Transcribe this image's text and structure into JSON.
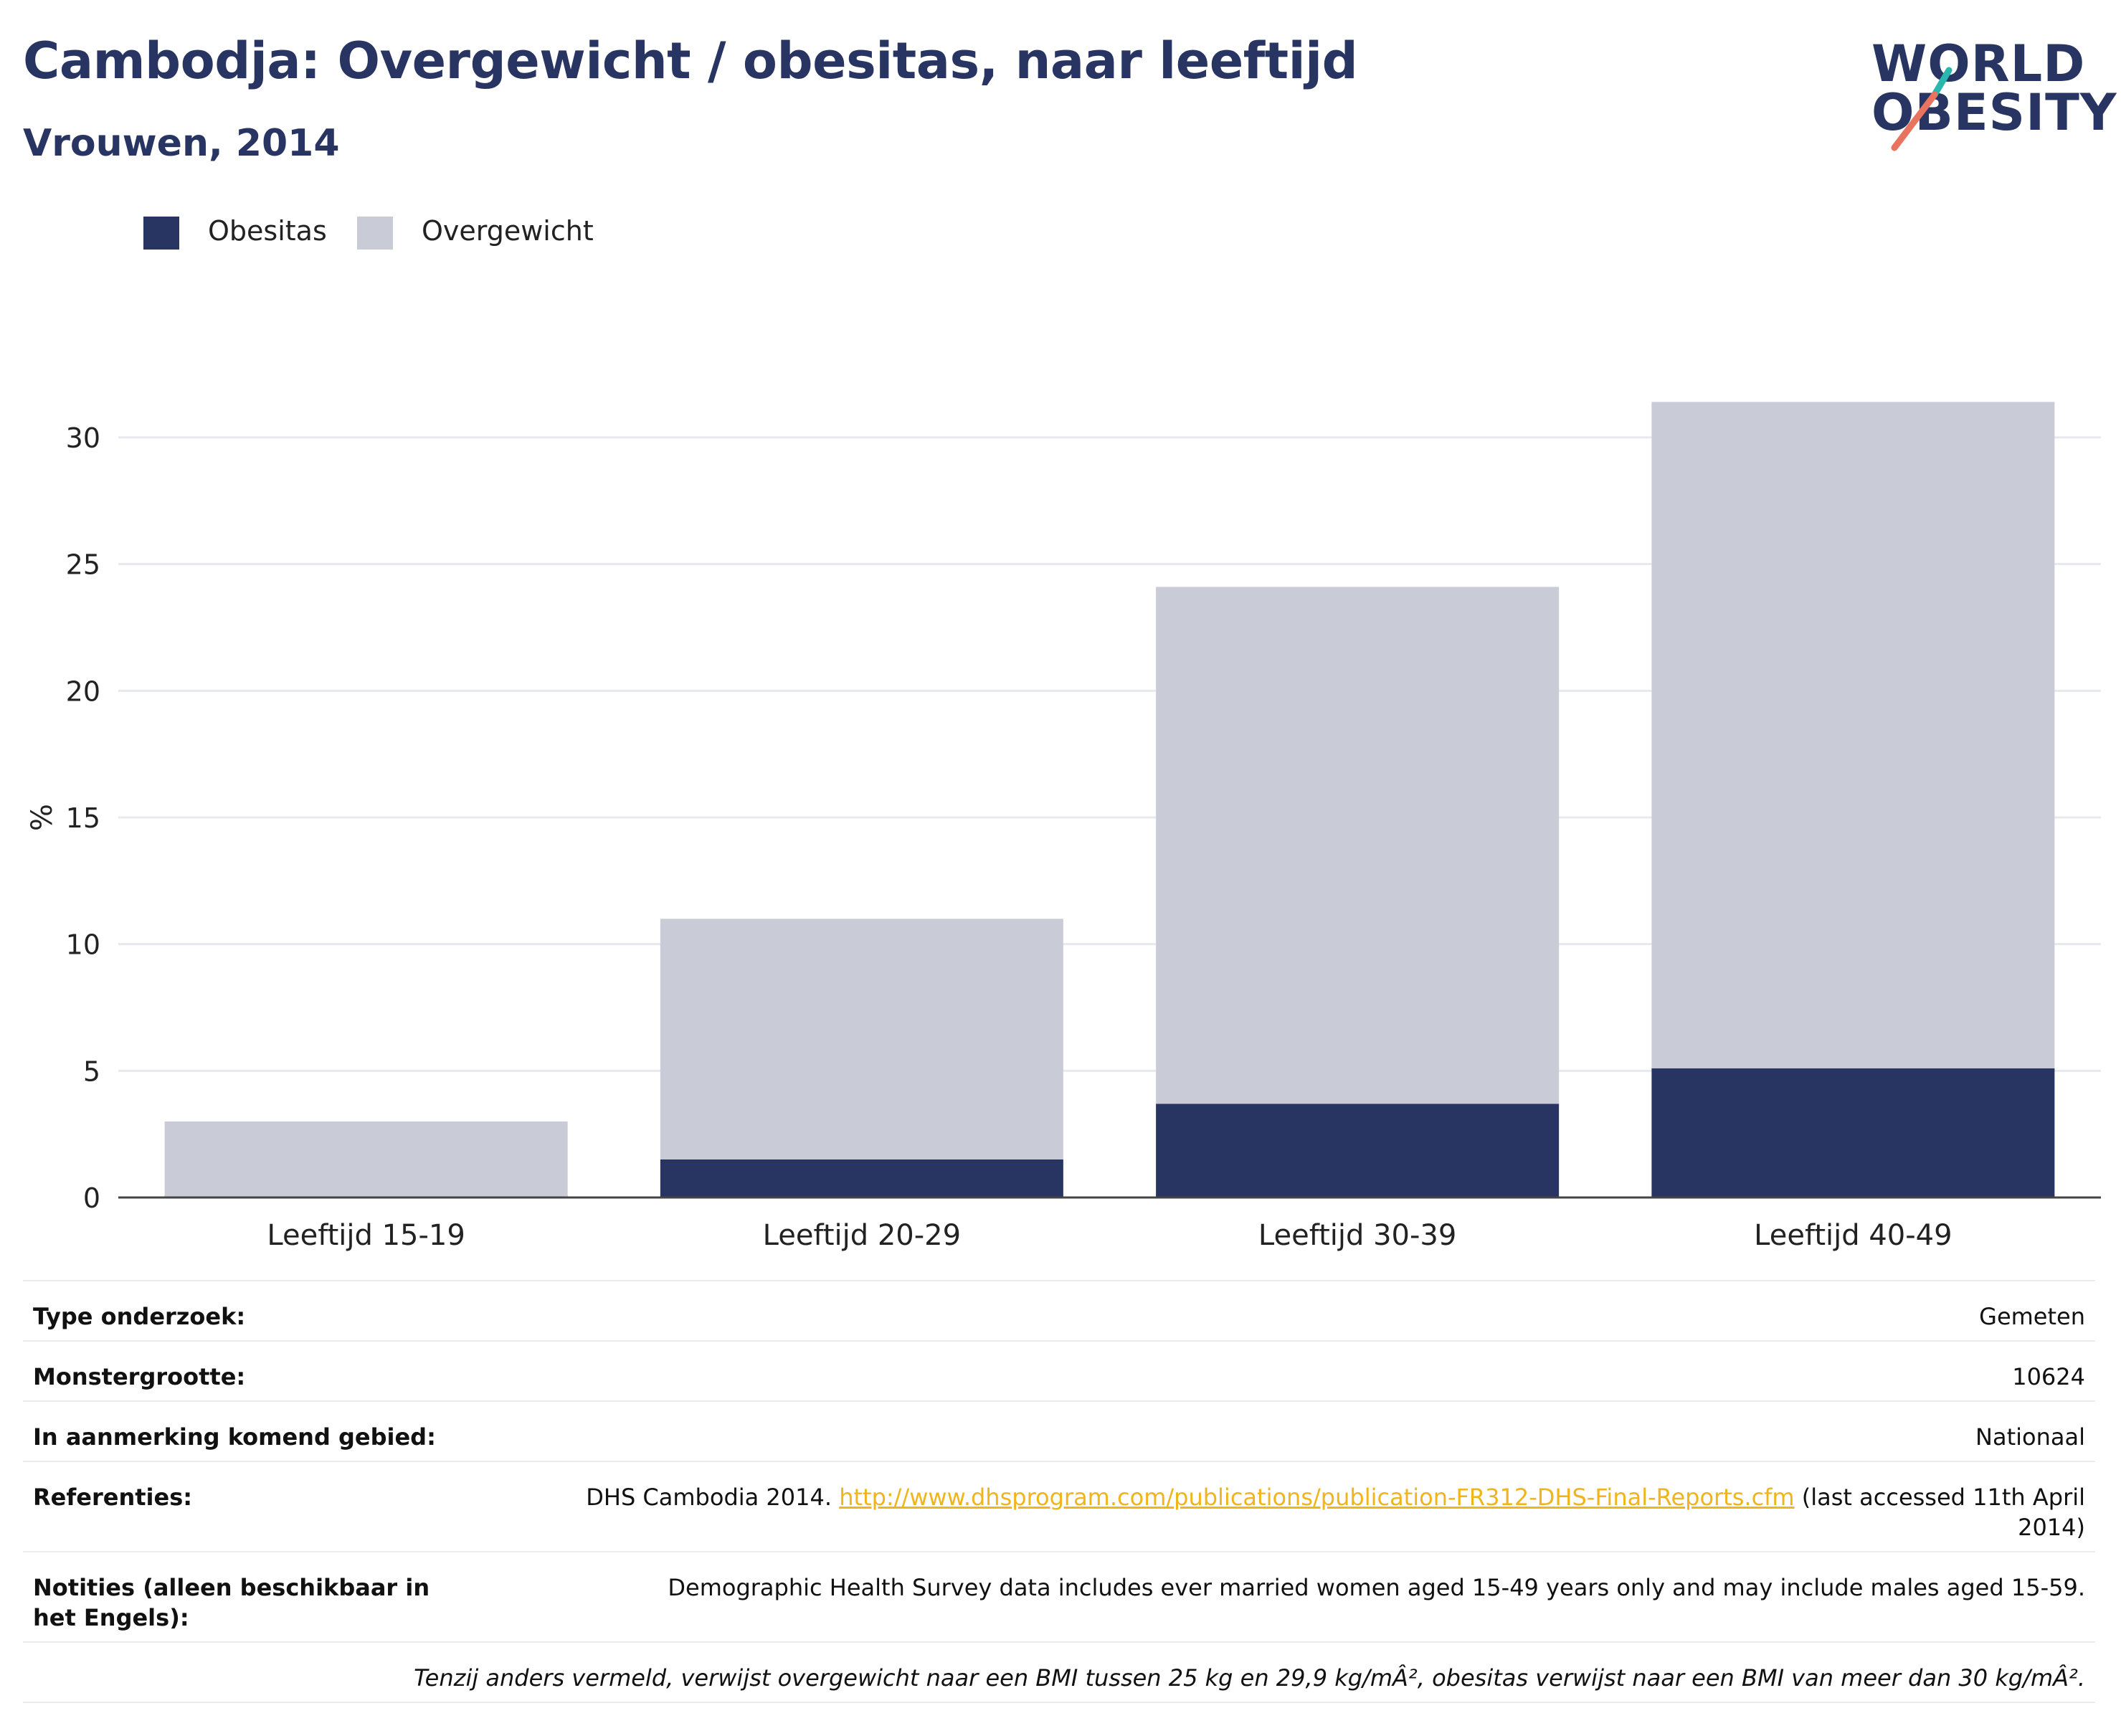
{
  "header": {
    "title": "Cambodja: Overgewicht / obesitas, naar leeftijd",
    "subtitle": "Vrouwen, 2014"
  },
  "logo": {
    "line1": "WORLD",
    "line2": "OBESITY",
    "accent_teal": "#2ab7ad",
    "accent_coral": "#e8735f"
  },
  "legend": [
    {
      "label": "Obesitas",
      "color": "#283462"
    },
    {
      "label": "Overgewicht",
      "color": "#c9ccd7"
    }
  ],
  "chart_data": {
    "type": "bar",
    "stacked": true,
    "categories": [
      "Leeftijd 15-19",
      "Leeftijd 20-29",
      "Leeftijd 30-39",
      "Leeftijd 40-49"
    ],
    "series": [
      {
        "name": "Obesitas",
        "values": [
          0.0,
          1.5,
          3.7,
          5.1
        ],
        "color": "#283462"
      },
      {
        "name": "Overgewicht",
        "values": [
          3.0,
          9.5,
          20.4,
          26.3
        ],
        "color": "#c9ccd7"
      }
    ],
    "ylabel": "%",
    "ylim": [
      0,
      32
    ],
    "yticks": [
      0,
      5,
      10,
      15,
      20,
      25,
      30
    ],
    "grid": true,
    "legend_position": "top-left"
  },
  "meta": {
    "rows": [
      {
        "label": "Type onderzoek:",
        "value": "Gemeten"
      },
      {
        "label": "Monstergrootte:",
        "value": "10624"
      },
      {
        "label": "In aanmerking komend gebied:",
        "value": "Nationaal"
      }
    ],
    "references": {
      "label": "Referenties:",
      "prefix": "DHS Cambodia 2014. ",
      "link": "http://www.dhsprogram.com/publications/publication-FR312-DHS-Final-Reports.cfm",
      "suffix": " (last accessed 11th April 2014)"
    },
    "notes": {
      "label": "Notities (alleen beschikbaar in het Engels):",
      "value": "Demographic Health Survey data includes ever married women aged 15-49 years only and may include males aged 15-59."
    },
    "footnote": "Tenzij anders vermeld, verwijst overgewicht naar een BMI tussen 25 kg en 29,9 kg/mÂ², obesitas verwijst naar een BMI van meer dan 30 kg/mÂ²."
  }
}
